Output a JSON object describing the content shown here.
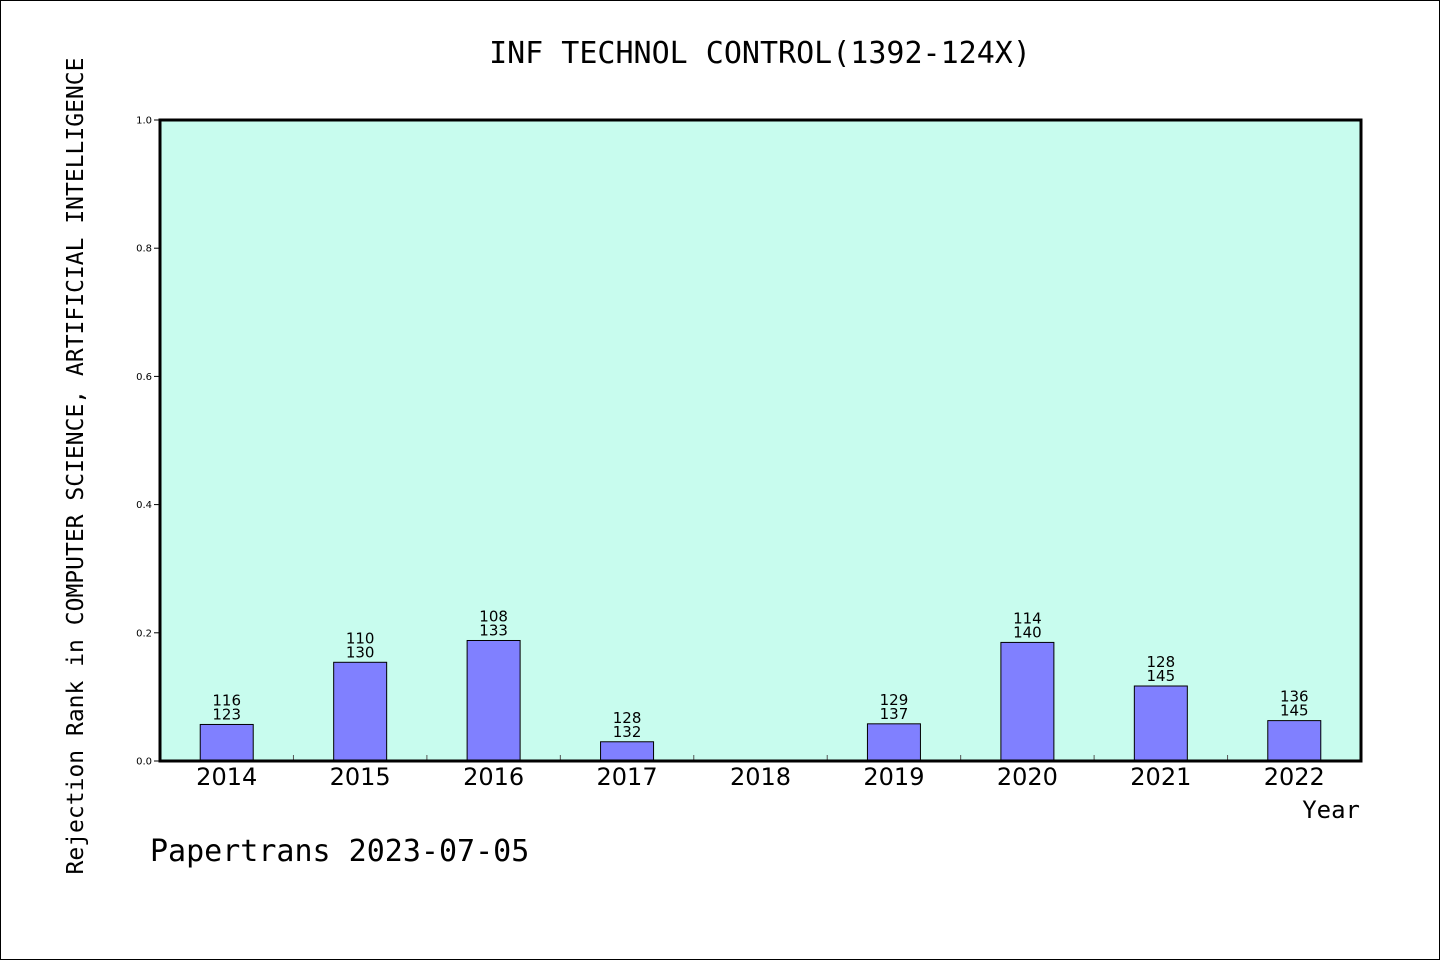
{
  "chart_data": {
    "type": "bar",
    "title": "INF TECHNOL CONTROL(1392-124X)",
    "xlabel": "Year",
    "ylabel": "Rejection Rank in COMPUTER SCIENCE, ARTIFICIAL INTELLIGENCE",
    "ylim": [
      0,
      1.0
    ],
    "yticks": [
      "0.0",
      "0.2",
      "0.4",
      "0.6",
      "0.8",
      "1.0"
    ],
    "grid": false,
    "categories": [
      "2014",
      "2015",
      "2016",
      "2017",
      "2018",
      "2019",
      "2020",
      "2021",
      "2022"
    ],
    "values": [
      0.057,
      0.154,
      0.188,
      0.03,
      0,
      0.058,
      0.185,
      0.117,
      0.063
    ],
    "labels_top": [
      "116",
      "110",
      "108",
      "128",
      "",
      "129",
      "114",
      "128",
      "136"
    ],
    "labels_bottom": [
      "123",
      "130",
      "133",
      "132",
      "",
      "137",
      "140",
      "145",
      "145"
    ],
    "colors": {
      "plot_bg": "#c8fcee",
      "bar": "#8080ff"
    }
  },
  "footer": "Papertrans 2023-07-05"
}
